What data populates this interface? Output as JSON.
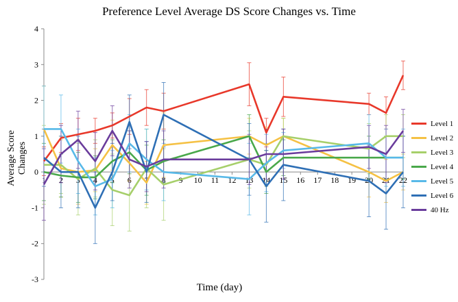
{
  "chart_data": {
    "type": "line",
    "title": "Preference Level Average DS Score Changes vs. Time",
    "xlabel": "Time (day)",
    "ylabel": "Average Score Changes",
    "x": [
      1,
      2,
      3,
      4,
      5,
      6,
      7,
      8,
      9,
      10,
      11,
      12,
      13,
      14,
      15,
      16,
      17,
      18,
      19,
      20,
      21,
      22
    ],
    "ylim": [
      -3,
      4
    ],
    "yticks": [
      -3,
      -2,
      -1,
      0,
      1,
      2,
      3,
      4
    ],
    "grid": false,
    "error_bars": true,
    "legend_position": "right",
    "series": [
      {
        "name": "Level 1",
        "color": "#e8382a",
        "x": [
          1,
          2,
          3,
          4,
          5,
          6,
          7,
          8,
          13,
          14,
          15,
          20,
          21,
          22
        ],
        "y": [
          0.3,
          0.95,
          1.05,
          1.15,
          1.3,
          1.55,
          1.8,
          1.7,
          2.45,
          1.1,
          2.1,
          1.9,
          1.65,
          2.7
        ],
        "err": [
          0.4,
          0.4,
          0.45,
          0.35,
          0.35,
          0.5,
          0.5,
          0.5,
          0.6,
          0.4,
          0.55,
          0.3,
          0.45,
          0.4
        ]
      },
      {
        "name": "Level 2",
        "color": "#f5c144",
        "x": [
          1,
          2,
          3,
          4,
          5,
          6,
          7,
          8,
          13,
          14,
          15,
          20,
          21,
          22
        ],
        "y": [
          1.2,
          0.1,
          0.0,
          0.05,
          0.75,
          0.25,
          -0.3,
          0.75,
          1.0,
          0.75,
          1.0,
          0.0,
          -0.25,
          0.0
        ],
        "err": [
          1.2,
          0.8,
          0.9,
          0.6,
          0.7,
          0.5,
          0.6,
          0.9,
          0.5,
          0.5,
          0.5,
          0.7,
          0.6,
          0.5
        ]
      },
      {
        "name": "Level 3",
        "color": "#a6cf6a",
        "x": [
          1,
          2,
          3,
          4,
          5,
          6,
          7,
          8,
          13,
          14,
          15,
          20,
          21,
          22
        ],
        "y": [
          0.2,
          0.2,
          -0.2,
          0.1,
          -0.5,
          -0.65,
          0.1,
          -0.35,
          0.35,
          0.2,
          1.0,
          0.65,
          1.0,
          1.0
        ],
        "err": [
          1.1,
          0.8,
          1.0,
          0.8,
          1.0,
          1.0,
          1.1,
          1.0,
          0.8,
          0.6,
          0.5,
          0.7,
          0.6,
          0.6
        ]
      },
      {
        "name": "Level 4",
        "color": "#49a84a",
        "x": [
          1,
          2,
          3,
          4,
          5,
          6,
          7,
          8,
          13,
          14,
          15,
          20,
          21,
          22
        ],
        "y": [
          0.0,
          -0.1,
          -0.15,
          -0.15,
          0.3,
          0.55,
          0.05,
          0.3,
          1.0,
          0.0,
          0.4,
          0.4,
          0.4,
          0.4
        ],
        "err": [
          0.8,
          0.6,
          0.7,
          0.6,
          0.6,
          0.6,
          0.7,
          0.6,
          0.6,
          0.6,
          0.5,
          0.6,
          0.6,
          0.6
        ]
      },
      {
        "name": "Level 5",
        "color": "#58b9e8",
        "x": [
          1,
          2,
          3,
          4,
          5,
          6,
          7,
          8,
          13,
          14,
          15,
          20,
          21,
          22
        ],
        "y": [
          1.2,
          1.2,
          0.3,
          -0.4,
          -0.2,
          0.8,
          0.35,
          0.0,
          -0.2,
          0.25,
          0.6,
          0.8,
          0.4,
          0.4
        ],
        "err": [
          1.2,
          0.95,
          0.9,
          0.8,
          0.8,
          0.8,
          0.85,
          0.8,
          1.0,
          0.8,
          0.5,
          0.8,
          0.8,
          0.8
        ]
      },
      {
        "name": "Level 6",
        "color": "#2e6fb5",
        "x": [
          1,
          2,
          3,
          4,
          5,
          6,
          7,
          8,
          13,
          14,
          15,
          20,
          21,
          22
        ],
        "y": [
          0.4,
          0.0,
          0.0,
          -1.0,
          0.0,
          1.4,
          0.0,
          1.6,
          0.35,
          -0.4,
          0.2,
          -0.25,
          -0.6,
          0.0
        ],
        "err": [
          0.8,
          1.0,
          1.0,
          1.0,
          0.8,
          0.75,
          0.85,
          0.9,
          1.0,
          1.0,
          1.0,
          1.0,
          1.0,
          1.0
        ]
      },
      {
        "name": "40 Hz",
        "color": "#6a3c9c",
        "x": [
          1,
          2,
          3,
          4,
          5,
          6,
          7,
          8,
          13,
          14,
          15,
          20,
          21,
          22
        ],
        "y": [
          -0.35,
          0.5,
          0.9,
          0.3,
          1.15,
          0.35,
          0.15,
          0.35,
          0.35,
          0.5,
          0.5,
          0.7,
          0.5,
          1.15
        ],
        "err": [
          1.0,
          0.8,
          0.8,
          0.8,
          0.7,
          0.8,
          0.7,
          0.8,
          0.7,
          0.7,
          0.7,
          0.6,
          0.8,
          0.6
        ]
      }
    ]
  }
}
